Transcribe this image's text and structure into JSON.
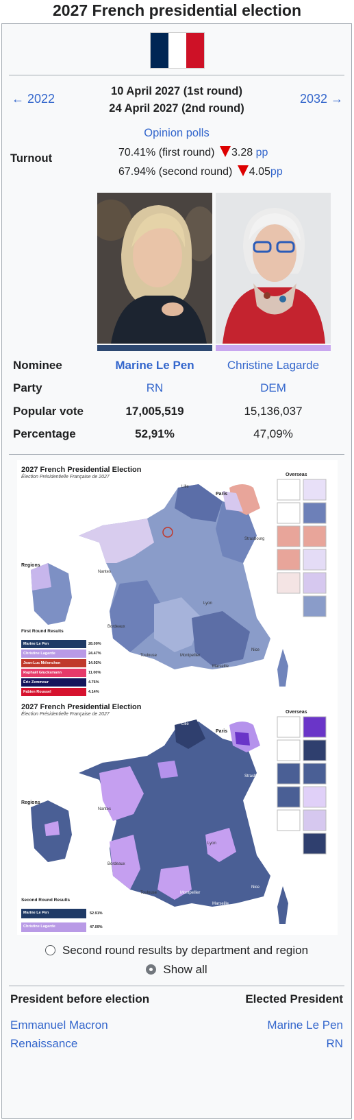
{
  "title": "2027 French presidential election",
  "nav": {
    "prev": "← 2022",
    "next": "2032 →"
  },
  "dates": {
    "first": "10 April 2027 (1st round)",
    "second": "24 April 2027 (2nd round)"
  },
  "opinion_polls": "Opinion polls",
  "turnout": {
    "label": "Turnout",
    "first_value": "70.41% (first round)",
    "first_change": "3.28",
    "second_value": "67.94% (second round)",
    "second_change": "4.05",
    "unit": "pp"
  },
  "candidates": [
    {
      "name": "Marine Le Pen",
      "party": "RN",
      "votes": "17,005,519",
      "percentage": "52,91%",
      "color": "#2c4770"
    },
    {
      "name": "Christine Lagarde",
      "party": "DEM",
      "votes": "15,136,037",
      "percentage": "47,09%",
      "color": "#c8a6ef"
    }
  ],
  "rows": {
    "nominee": "Nominee",
    "party": "Party",
    "popular_vote": "Popular vote",
    "percentage": "Percentage"
  },
  "maps": {
    "title": "2027 French Presidential Election",
    "subtitle": "Élection Présidentielle Française de 2027",
    "paris": "Paris",
    "overseas": "Overseas",
    "regions": "Regions",
    "cities": [
      "Lille",
      "Strasbourg",
      "Nantes",
      "Lyon",
      "Bordeaux",
      "Toulouse",
      "Montpellier",
      "Marseille",
      "Nice"
    ],
    "first_round": {
      "legend_title": "First Round Results",
      "entries": [
        {
          "name": "Marine Le Pen",
          "pct": "28.00%",
          "color": "#1f3a66"
        },
        {
          "name": "Christine Lagarde",
          "pct": "24.47%",
          "color": "#b99ae6"
        },
        {
          "name": "Jean-Luc Mélenchon",
          "pct": "14.92%",
          "color": "#c0392b"
        },
        {
          "name": "Raphaël Glucksmann",
          "pct": "11.00%",
          "color": "#e63a6a"
        },
        {
          "name": "Éric Zemmour",
          "pct": "4.76%",
          "color": "#15155c"
        },
        {
          "name": "Fabien Roussel",
          "pct": "4.14%",
          "color": "#d6122e"
        }
      ]
    },
    "second_round": {
      "legend_title": "Second Round Results",
      "entries": [
        {
          "name": "Marine Le Pen",
          "pct": "52.91%",
          "color": "#1f3a66"
        },
        {
          "name": "Christine Lagarde",
          "pct": "47.09%",
          "color": "#b99ae6"
        }
      ]
    }
  },
  "map_options": [
    {
      "label": "Second round results by department and region",
      "selected": false
    },
    {
      "label": "Show all",
      "selected": true
    }
  ],
  "footer": {
    "before_label": "President before election",
    "elected_label": "Elected President",
    "before_name": "Emmanuel Macron",
    "before_party": "Renaissance",
    "elected_name": "Marine Le Pen",
    "elected_party": "RN"
  }
}
